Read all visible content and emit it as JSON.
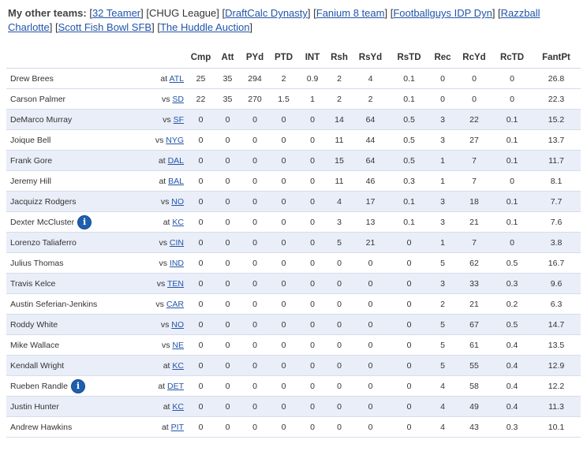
{
  "teams": {
    "label": "My other teams:",
    "links": [
      {
        "text": "32 Teamer",
        "link": true
      },
      {
        "text": "CHUG League",
        "link": false
      },
      {
        "text": "DraftCalc Dynasty",
        "link": true
      },
      {
        "text": "Fanium 8 team",
        "link": true
      },
      {
        "text": "Footballguys IDP Dyn",
        "link": true
      },
      {
        "text": "Razzball Charlotte",
        "link": true
      },
      {
        "text": "Scott Fish Bowl SFB",
        "link": true
      },
      {
        "text": "The Huddle Auction",
        "link": true
      }
    ]
  },
  "table": {
    "headers": [
      "",
      "",
      "Cmp",
      "Att",
      "PYd",
      "PTD",
      "INT",
      "Rsh",
      "RsYd",
      "RsTD",
      "Rec",
      "RcYd",
      "RcTD",
      "FantPt"
    ],
    "rows": [
      {
        "name": "Drew Brees",
        "info": false,
        "prefix": "at",
        "opp": "ATL",
        "stats": [
          "25",
          "35",
          "294",
          "2",
          "0.9",
          "2",
          "4",
          "0.1",
          "0",
          "0",
          "0",
          "26.8"
        ]
      },
      {
        "name": "Carson Palmer",
        "info": false,
        "prefix": "vs",
        "opp": "SD",
        "stats": [
          "22",
          "35",
          "270",
          "1.5",
          "1",
          "2",
          "2",
          "0.1",
          "0",
          "0",
          "0",
          "22.3"
        ]
      },
      {
        "name": "DeMarco Murray",
        "info": false,
        "prefix": "vs",
        "opp": "SF",
        "stats": [
          "0",
          "0",
          "0",
          "0",
          "0",
          "14",
          "64",
          "0.5",
          "3",
          "22",
          "0.1",
          "15.2"
        ]
      },
      {
        "name": "Joique Bell",
        "info": false,
        "prefix": "vs",
        "opp": "NYG",
        "stats": [
          "0",
          "0",
          "0",
          "0",
          "0",
          "11",
          "44",
          "0.5",
          "3",
          "27",
          "0.1",
          "13.7"
        ]
      },
      {
        "name": "Frank Gore",
        "info": false,
        "prefix": "at",
        "opp": "DAL",
        "stats": [
          "0",
          "0",
          "0",
          "0",
          "0",
          "15",
          "64",
          "0.5",
          "1",
          "7",
          "0.1",
          "11.7"
        ]
      },
      {
        "name": "Jeremy Hill",
        "info": false,
        "prefix": "at",
        "opp": "BAL",
        "stats": [
          "0",
          "0",
          "0",
          "0",
          "0",
          "11",
          "46",
          "0.3",
          "1",
          "7",
          "0",
          "8.1"
        ]
      },
      {
        "name": "Jacquizz Rodgers",
        "info": false,
        "prefix": "vs",
        "opp": "NO",
        "stats": [
          "0",
          "0",
          "0",
          "0",
          "0",
          "4",
          "17",
          "0.1",
          "3",
          "18",
          "0.1",
          "7.7"
        ]
      },
      {
        "name": "Dexter McCluster",
        "info": true,
        "prefix": "at",
        "opp": "KC",
        "stats": [
          "0",
          "0",
          "0",
          "0",
          "0",
          "3",
          "13",
          "0.1",
          "3",
          "21",
          "0.1",
          "7.6"
        ]
      },
      {
        "name": "Lorenzo Taliaferro",
        "info": false,
        "prefix": "vs",
        "opp": "CIN",
        "stats": [
          "0",
          "0",
          "0",
          "0",
          "0",
          "5",
          "21",
          "0",
          "1",
          "7",
          "0",
          "3.8"
        ]
      },
      {
        "name": "Julius Thomas",
        "info": false,
        "prefix": "vs",
        "opp": "IND",
        "stats": [
          "0",
          "0",
          "0",
          "0",
          "0",
          "0",
          "0",
          "0",
          "5",
          "62",
          "0.5",
          "16.7"
        ]
      },
      {
        "name": "Travis Kelce",
        "info": false,
        "prefix": "vs",
        "opp": "TEN",
        "stats": [
          "0",
          "0",
          "0",
          "0",
          "0",
          "0",
          "0",
          "0",
          "3",
          "33",
          "0.3",
          "9.6"
        ]
      },
      {
        "name": "Austin Seferian-Jenkins",
        "info": false,
        "prefix": "vs",
        "opp": "CAR",
        "stats": [
          "0",
          "0",
          "0",
          "0",
          "0",
          "0",
          "0",
          "0",
          "2",
          "21",
          "0.2",
          "6.3"
        ]
      },
      {
        "name": "Roddy White",
        "info": false,
        "prefix": "vs",
        "opp": "NO",
        "stats": [
          "0",
          "0",
          "0",
          "0",
          "0",
          "0",
          "0",
          "0",
          "5",
          "67",
          "0.5",
          "14.7"
        ]
      },
      {
        "name": "Mike Wallace",
        "info": false,
        "prefix": "vs",
        "opp": "NE",
        "stats": [
          "0",
          "0",
          "0",
          "0",
          "0",
          "0",
          "0",
          "0",
          "5",
          "61",
          "0.4",
          "13.5"
        ]
      },
      {
        "name": "Kendall Wright",
        "info": false,
        "prefix": "at",
        "opp": "KC",
        "stats": [
          "0",
          "0",
          "0",
          "0",
          "0",
          "0",
          "0",
          "0",
          "5",
          "55",
          "0.4",
          "12.9"
        ]
      },
      {
        "name": "Rueben Randle",
        "info": true,
        "prefix": "at",
        "opp": "DET",
        "stats": [
          "0",
          "0",
          "0",
          "0",
          "0",
          "0",
          "0",
          "0",
          "4",
          "58",
          "0.4",
          "12.2"
        ]
      },
      {
        "name": "Justin Hunter",
        "info": false,
        "prefix": "at",
        "opp": "KC",
        "stats": [
          "0",
          "0",
          "0",
          "0",
          "0",
          "0",
          "0",
          "0",
          "4",
          "49",
          "0.4",
          "11.3"
        ]
      },
      {
        "name": "Andrew Hawkins",
        "info": false,
        "prefix": "at",
        "opp": "PIT",
        "stats": [
          "0",
          "0",
          "0",
          "0",
          "0",
          "0",
          "0",
          "0",
          "4",
          "43",
          "0.3",
          "10.1"
        ]
      }
    ]
  },
  "icons": {
    "info": "info-icon"
  },
  "colors": {
    "link": "#2255aa",
    "alt_row": "#eaeef8",
    "info_icon": "#1f5fb0"
  }
}
